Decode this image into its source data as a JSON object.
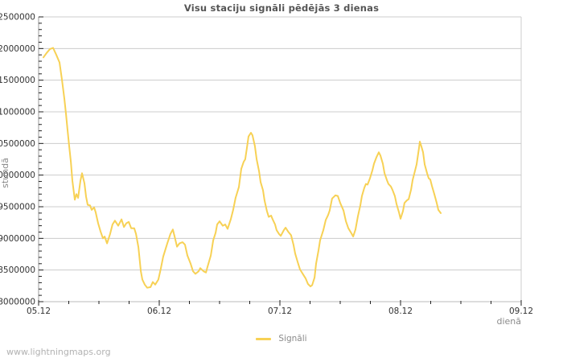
{
  "header": {
    "title": "Visu staciju signāli pēdējās 3 dienas"
  },
  "legend": {
    "label": "Signāli"
  },
  "watermark": {
    "text": "www.lightningmaps.org"
  },
  "style": {
    "line_color": "#f7d155",
    "grid_color": "#cccccc",
    "border_color": "#cccccc",
    "y_axis_color": "#999999",
    "x_axis_color": "#bbbbbb",
    "tick_color": "#222222",
    "tick_label_color": "#333333",
    "unit_label_color": "#8a8a8a",
    "title_color": "#555555",
    "background": "#ffffff"
  },
  "chart_data": {
    "type": "line",
    "title": "Visu staciju signāli pēdējās 3 dienas",
    "xlabel": "dienā",
    "ylabel": "stundā",
    "grid": true,
    "legend_position": "bottom",
    "x_tick_labels": [
      "05.12",
      "06.12",
      "07.12",
      "08.12",
      "09.12"
    ],
    "x_tick_days": [
      0,
      1,
      2,
      3,
      4
    ],
    "x_minor_step_days": 0.25,
    "xlim_days": [
      0,
      4
    ],
    "ylim": [
      8000000,
      12500000
    ],
    "y_major_step": 500000,
    "y_minor_step": 100000,
    "y_tick_labels": [
      "8000000",
      "8500000",
      "9000000",
      "9500000",
      "10000000",
      "10500000",
      "11000000",
      "11500000",
      "12000000",
      "12500000"
    ],
    "series": [
      {
        "name": "Signāli",
        "color": "#f7d155",
        "points": [
          [
            0.04,
            11860000
          ],
          [
            0.067,
            11930000
          ],
          [
            0.093,
            11990000
          ],
          [
            0.12,
            12010000
          ],
          [
            0.147,
            11900000
          ],
          [
            0.173,
            11780000
          ],
          [
            0.193,
            11510000
          ],
          [
            0.213,
            11210000
          ],
          [
            0.227,
            10960000
          ],
          [
            0.24,
            10710000
          ],
          [
            0.253,
            10460000
          ],
          [
            0.267,
            10210000
          ],
          [
            0.28,
            9910000
          ],
          [
            0.3,
            9610000
          ],
          [
            0.313,
            9700000
          ],
          [
            0.327,
            9640000
          ],
          [
            0.347,
            9910000
          ],
          [
            0.36,
            10030000
          ],
          [
            0.38,
            9870000
          ],
          [
            0.393,
            9660000
          ],
          [
            0.407,
            9530000
          ],
          [
            0.427,
            9520000
          ],
          [
            0.44,
            9450000
          ],
          [
            0.46,
            9490000
          ],
          [
            0.473,
            9410000
          ],
          [
            0.493,
            9240000
          ],
          [
            0.513,
            9110000
          ],
          [
            0.533,
            9000000
          ],
          [
            0.547,
            9030000
          ],
          [
            0.567,
            8920000
          ],
          [
            0.593,
            9070000
          ],
          [
            0.613,
            9220000
          ],
          [
            0.633,
            9280000
          ],
          [
            0.66,
            9200000
          ],
          [
            0.687,
            9300000
          ],
          [
            0.707,
            9180000
          ],
          [
            0.727,
            9240000
          ],
          [
            0.747,
            9260000
          ],
          [
            0.767,
            9160000
          ],
          [
            0.793,
            9160000
          ],
          [
            0.807,
            9070000
          ],
          [
            0.827,
            8860000
          ],
          [
            0.847,
            8480000
          ],
          [
            0.86,
            8350000
          ],
          [
            0.88,
            8270000
          ],
          [
            0.9,
            8220000
          ],
          [
            0.927,
            8230000
          ],
          [
            0.947,
            8310000
          ],
          [
            0.967,
            8270000
          ],
          [
            0.993,
            8350000
          ],
          [
            1.013,
            8520000
          ],
          [
            1.033,
            8710000
          ],
          [
            1.067,
            8920000
          ],
          [
            1.093,
            9070000
          ],
          [
            1.113,
            9140000
          ],
          [
            1.127,
            9030000
          ],
          [
            1.147,
            8870000
          ],
          [
            1.167,
            8920000
          ],
          [
            1.193,
            8940000
          ],
          [
            1.213,
            8900000
          ],
          [
            1.233,
            8730000
          ],
          [
            1.26,
            8600000
          ],
          [
            1.28,
            8480000
          ],
          [
            1.3,
            8440000
          ],
          [
            1.327,
            8480000
          ],
          [
            1.34,
            8530000
          ],
          [
            1.367,
            8480000
          ],
          [
            1.387,
            8460000
          ],
          [
            1.4,
            8550000
          ],
          [
            1.427,
            8730000
          ],
          [
            1.447,
            8970000
          ],
          [
            1.467,
            9090000
          ],
          [
            1.48,
            9220000
          ],
          [
            1.5,
            9270000
          ],
          [
            1.527,
            9200000
          ],
          [
            1.547,
            9220000
          ],
          [
            1.567,
            9150000
          ],
          [
            1.593,
            9300000
          ],
          [
            1.613,
            9450000
          ],
          [
            1.633,
            9640000
          ],
          [
            1.66,
            9810000
          ],
          [
            1.68,
            10100000
          ],
          [
            1.7,
            10210000
          ],
          [
            1.713,
            10250000
          ],
          [
            1.727,
            10440000
          ],
          [
            1.74,
            10610000
          ],
          [
            1.76,
            10670000
          ],
          [
            1.773,
            10630000
          ],
          [
            1.793,
            10460000
          ],
          [
            1.807,
            10250000
          ],
          [
            1.827,
            10060000
          ],
          [
            1.84,
            9890000
          ],
          [
            1.86,
            9760000
          ],
          [
            1.873,
            9600000
          ],
          [
            1.893,
            9430000
          ],
          [
            1.907,
            9340000
          ],
          [
            1.927,
            9360000
          ],
          [
            1.94,
            9300000
          ],
          [
            1.96,
            9220000
          ],
          [
            1.973,
            9130000
          ],
          [
            1.993,
            9070000
          ],
          [
            2.007,
            9040000
          ],
          [
            2.033,
            9130000
          ],
          [
            2.047,
            9170000
          ],
          [
            2.067,
            9110000
          ],
          [
            2.093,
            9050000
          ],
          [
            2.113,
            8900000
          ],
          [
            2.127,
            8760000
          ],
          [
            2.147,
            8630000
          ],
          [
            2.167,
            8510000
          ],
          [
            2.193,
            8430000
          ],
          [
            2.213,
            8370000
          ],
          [
            2.233,
            8280000
          ],
          [
            2.253,
            8240000
          ],
          [
            2.267,
            8260000
          ],
          [
            2.287,
            8380000
          ],
          [
            2.3,
            8600000
          ],
          [
            2.32,
            8810000
          ],
          [
            2.333,
            8970000
          ],
          [
            2.36,
            9130000
          ],
          [
            2.38,
            9290000
          ],
          [
            2.4,
            9370000
          ],
          [
            2.413,
            9440000
          ],
          [
            2.433,
            9630000
          ],
          [
            2.46,
            9680000
          ],
          [
            2.48,
            9670000
          ],
          [
            2.5,
            9560000
          ],
          [
            2.527,
            9440000
          ],
          [
            2.547,
            9270000
          ],
          [
            2.567,
            9160000
          ],
          [
            2.593,
            9080000
          ],
          [
            2.607,
            9030000
          ],
          [
            2.627,
            9140000
          ],
          [
            2.647,
            9350000
          ],
          [
            2.667,
            9520000
          ],
          [
            2.68,
            9670000
          ],
          [
            2.7,
            9800000
          ],
          [
            2.713,
            9860000
          ],
          [
            2.727,
            9850000
          ],
          [
            2.747,
            9950000
          ],
          [
            2.767,
            10080000
          ],
          [
            2.78,
            10180000
          ],
          [
            2.8,
            10280000
          ],
          [
            2.82,
            10360000
          ],
          [
            2.833,
            10310000
          ],
          [
            2.853,
            10180000
          ],
          [
            2.867,
            10030000
          ],
          [
            2.887,
            9920000
          ],
          [
            2.9,
            9860000
          ],
          [
            2.92,
            9820000
          ],
          [
            2.933,
            9770000
          ],
          [
            2.953,
            9670000
          ],
          [
            2.967,
            9540000
          ],
          [
            2.987,
            9410000
          ],
          [
            3.0,
            9310000
          ],
          [
            3.02,
            9430000
          ],
          [
            3.033,
            9560000
          ],
          [
            3.053,
            9600000
          ],
          [
            3.067,
            9620000
          ],
          [
            3.087,
            9770000
          ],
          [
            3.1,
            9920000
          ],
          [
            3.12,
            10070000
          ],
          [
            3.133,
            10170000
          ],
          [
            3.153,
            10430000
          ],
          [
            3.16,
            10530000
          ],
          [
            3.173,
            10450000
          ],
          [
            3.187,
            10360000
          ],
          [
            3.2,
            10170000
          ],
          [
            3.22,
            10030000
          ],
          [
            3.233,
            9950000
          ],
          [
            3.247,
            9930000
          ],
          [
            3.26,
            9830000
          ],
          [
            3.28,
            9700000
          ],
          [
            3.3,
            9560000
          ],
          [
            3.313,
            9450000
          ],
          [
            3.333,
            9400000
          ]
        ]
      }
    ]
  }
}
